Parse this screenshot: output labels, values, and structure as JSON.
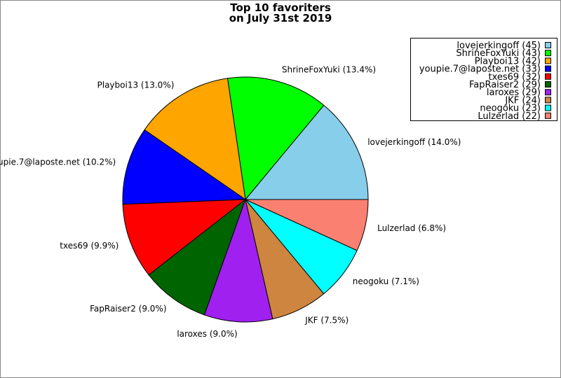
{
  "chart_data": {
    "type": "pie",
    "title_lines": [
      "Top 10 favoriters",
      "on July 31st 2019"
    ],
    "legend_position": "top-right",
    "slices": [
      {
        "name": "lovejerkingoff",
        "value": 45,
        "percent_label": "14.0%",
        "legend_label": "lovejerkingoff (45)",
        "color": "#87ceeb"
      },
      {
        "name": "ShrineFoxYuki",
        "value": 43,
        "percent_label": "13.4%",
        "legend_label": "ShrineFoxYuki (43)",
        "color": "#00ff00"
      },
      {
        "name": "Playboi13",
        "value": 42,
        "percent_label": "13.0%",
        "legend_label": "Playboi13 (42)",
        "color": "#ffa500"
      },
      {
        "name": "youpie.7@laposte.net",
        "value": 33,
        "percent_label": "10.2%",
        "legend_label": "youpie.7@laposte.net (33)",
        "color": "#0000ff"
      },
      {
        "name": "txes69",
        "value": 32,
        "percent_label": "9.9%",
        "legend_label": "txes69 (32)",
        "color": "#ff0000"
      },
      {
        "name": "FapRaiser2",
        "value": 29,
        "percent_label": "9.0%",
        "legend_label": "FapRaiser2 (29)",
        "color": "#006400"
      },
      {
        "name": "laroxes",
        "value": 29,
        "percent_label": "9.0%",
        "legend_label": "laroxes (29)",
        "color": "#a020f0"
      },
      {
        "name": "JKF",
        "value": 24,
        "percent_label": "7.5%",
        "legend_label": "JKF (24)",
        "color": "#cd853f"
      },
      {
        "name": "neogoku",
        "value": 23,
        "percent_label": "7.1%",
        "legend_label": "neogoku (23)",
        "color": "#00ffff"
      },
      {
        "name": "Lulzerlad",
        "value": 22,
        "percent_label": "6.8%",
        "legend_label": "Lulzerlad (22)",
        "color": "#fa8072"
      }
    ]
  }
}
